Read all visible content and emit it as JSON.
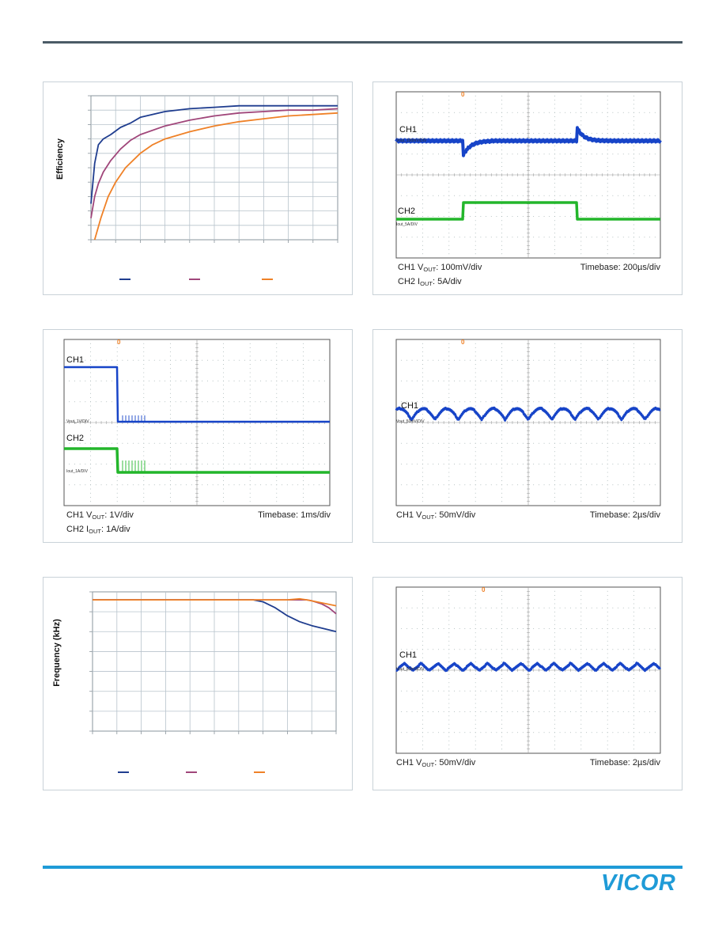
{
  "logo_text": "VICOR",
  "colors": {
    "blue": "#1f3d8f",
    "magenta": "#a0467a",
    "orange": "#ef8127",
    "scope_blue": "#1744c8",
    "scope_green": "#23b62b",
    "grid": "#b8c3cc",
    "accent": "#1f9bd7"
  },
  "panels": {
    "efficiency": {
      "ylabel": "Efficiency",
      "chart_data": {
        "type": "line",
        "ylabel": "Efficiency",
        "xlim": [
          0,
          10
        ],
        "ylim": [
          0,
          10
        ],
        "grid": true,
        "legend": "bottom",
        "series": [
          {
            "color": "#1f3d8f",
            "x": [
              0,
              0.15,
              0.3,
              0.5,
              0.8,
              1.2,
              1.6,
              2,
              3,
              4,
              5,
              6,
              7,
              8,
              9,
              10
            ],
            "y": [
              2.5,
              5.3,
              6.6,
              7,
              7.3,
              7.8,
              8.1,
              8.5,
              8.9,
              9.1,
              9.2,
              9.3,
              9.3,
              9.3,
              9.3,
              9.3
            ]
          },
          {
            "color": "#a0467a",
            "x": [
              0,
              0.15,
              0.3,
              0.5,
              0.8,
              1.2,
              1.6,
              2,
              3,
              4,
              5,
              6,
              7,
              8,
              9,
              10
            ],
            "y": [
              1.5,
              3,
              3.9,
              4.7,
              5.5,
              6.3,
              6.9,
              7.3,
              7.9,
              8.3,
              8.6,
              8.8,
              8.9,
              9,
              9,
              9.1
            ]
          },
          {
            "color": "#ef8127",
            "x": [
              0.15,
              0.4,
              0.7,
              1,
              1.4,
              2,
              2.5,
              3,
              4,
              5,
              6,
              7,
              8,
              9,
              10
            ],
            "y": [
              0,
              1.5,
              3,
              4,
              5,
              6,
              6.6,
              7,
              7.5,
              7.9,
              8.2,
              8.4,
              8.6,
              8.7,
              8.8
            ]
          }
        ]
      }
    },
    "scope_load_step": {
      "ch1": "CH1",
      "ch2": "CH2",
      "ch1_tiny": "Vout_100mV/DIV",
      "ch2_tiny": "Iout_5A/DIV",
      "marker": "0",
      "cap_left_1": "CH1 V",
      "cap_left_1_sub": "OUT",
      "cap_left_1_rest": ": 100mV/div",
      "cap_left_2": "CH2 I",
      "cap_left_2_sub": "OUT",
      "cap_left_2_rest": ": 5A/div",
      "cap_right": "Timebase: 200µs/div"
    },
    "scope_shutdown": {
      "ch1": "CH1",
      "ch2": "CH2",
      "ch1_tiny": "Vout_1V/DIV",
      "ch2_tiny": "Iout_1A/DIV",
      "marker": "0",
      "cap_left_1": "CH1 V",
      "cap_left_1_sub": "OUT",
      "cap_left_1_rest": ": 1V/div",
      "cap_left_2": "CH2 I",
      "cap_left_2_sub": "OUT",
      "cap_left_2_rest": ": 1A/div",
      "cap_right": "Timebase: 1ms/div"
    },
    "scope_ripple_1": {
      "ch1": "CH1",
      "ch1_tiny": "Vout_50mV/DIV",
      "marker": "0",
      "cap_left_1": "CH1 V",
      "cap_left_1_sub": "OUT",
      "cap_left_1_rest": ": 50mV/div",
      "cap_right": "Timebase: 2µs/div"
    },
    "frequency": {
      "ylabel": "Frequency (kHz)",
      "chart_data": {
        "type": "line",
        "ylabel": "Frequency (kHz)",
        "xlim": [
          0,
          10
        ],
        "ylim": [
          0,
          7
        ],
        "grid": true,
        "legend": "bottom",
        "series": [
          {
            "color": "#1f3d8f",
            "x": [
              0,
              2,
              4,
              6,
              6.6,
              7,
              7.5,
              8,
              8.5,
              9,
              9.5,
              10
            ],
            "y": [
              6.6,
              6.6,
              6.6,
              6.6,
              6.6,
              6.5,
              6.2,
              5.8,
              5.5,
              5.3,
              5.15,
              5.0
            ]
          },
          {
            "color": "#a0467a",
            "x": [
              0,
              2,
              4,
              6,
              7,
              8,
              8.8,
              9,
              9.4,
              9.7,
              10
            ],
            "y": [
              6.6,
              6.6,
              6.6,
              6.6,
              6.6,
              6.6,
              6.6,
              6.55,
              6.4,
              6.2,
              5.9
            ]
          },
          {
            "color": "#ef8127",
            "x": [
              0,
              2,
              4,
              6,
              7,
              8,
              8.5,
              8.8,
              9.2,
              9.6,
              10
            ],
            "y": [
              6.6,
              6.6,
              6.6,
              6.6,
              6.6,
              6.6,
              6.65,
              6.6,
              6.5,
              6.4,
              6.3
            ]
          }
        ]
      }
    },
    "scope_ripple_2": {
      "ch1": "CH1",
      "ch1_tiny": "Vout_50mV/DIV",
      "marker": "0",
      "cap_left_1": "CH1 V",
      "cap_left_1_sub": "OUT",
      "cap_left_1_rest": ": 50mV/div",
      "cap_right": "Timebase: 2µs/div"
    }
  }
}
